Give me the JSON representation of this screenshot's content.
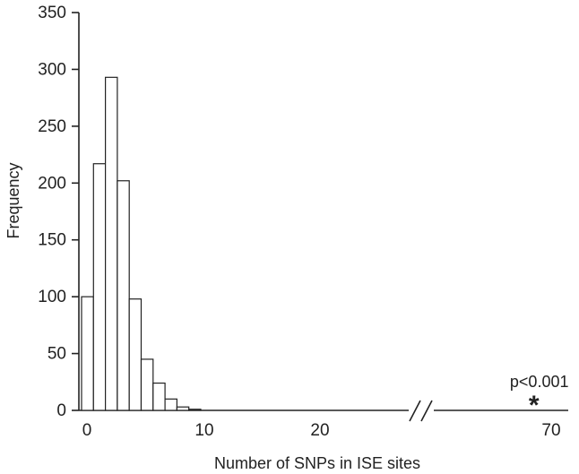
{
  "chart_data": {
    "type": "bar",
    "title": "",
    "xlabel": "Number of SNPs in ISE sites",
    "ylabel": "Frequency",
    "ylim": [
      0,
      350
    ],
    "yticks": [
      0,
      50,
      100,
      150,
      200,
      250,
      300,
      350
    ],
    "xticks_left": [
      0,
      10,
      20
    ],
    "xticks_right": [
      70
    ],
    "axis_break": true,
    "bin_width": 1,
    "x": [
      0,
      1,
      2,
      3,
      4,
      5,
      6,
      7,
      8,
      9
    ],
    "values": [
      100,
      217,
      293,
      202,
      98,
      45,
      24,
      10,
      3,
      1
    ],
    "annotation": {
      "text": "p<0.001",
      "marker": "*",
      "x": 69,
      "y": 8
    },
    "grid": false
  }
}
